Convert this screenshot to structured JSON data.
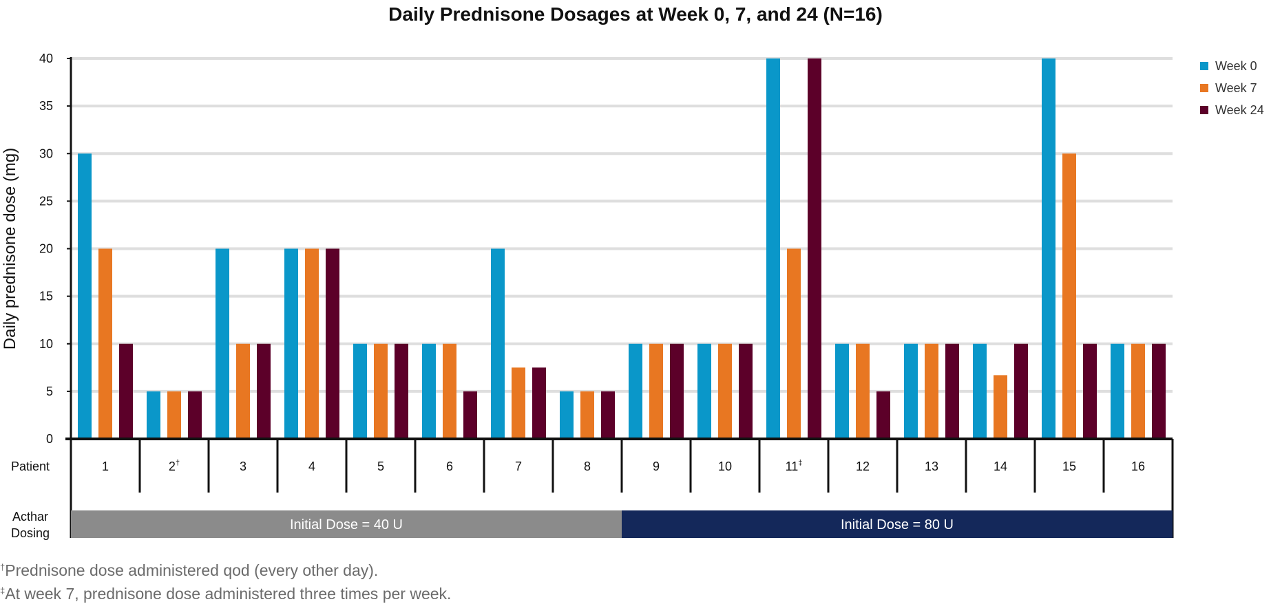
{
  "chart_data": {
    "type": "bar",
    "title": "Daily Prednisone Dosages at Week 0, 7, and 24 (N=16)",
    "ylabel": "Daily prednisone dose (mg)",
    "xlabel": "Patient",
    "ylim": [
      0,
      40
    ],
    "yticks": [
      0,
      5,
      10,
      15,
      20,
      25,
      30,
      35,
      40
    ],
    "grid": true,
    "legend_position": "top-right",
    "categories": [
      "1",
      "2†",
      "3",
      "4",
      "5",
      "6",
      "7",
      "8",
      "9",
      "10",
      "11‡",
      "12",
      "13",
      "14",
      "15",
      "16"
    ],
    "series": [
      {
        "name": "Week 0",
        "color": "#0a97c9",
        "values": [
          30,
          5,
          20,
          20,
          10,
          10,
          20,
          5,
          10,
          10,
          40,
          10,
          10,
          10,
          40,
          10
        ]
      },
      {
        "name": "Week 7",
        "color": "#e87722",
        "values": [
          20,
          5,
          10,
          20,
          10,
          10,
          7.5,
          5,
          10,
          10,
          20,
          10,
          10,
          6.7,
          30,
          10
        ]
      },
      {
        "name": "Week 24",
        "color": "#5c0029",
        "values": [
          10,
          5,
          10,
          20,
          10,
          5,
          7.5,
          5,
          10,
          10,
          40,
          5,
          10,
          10,
          10,
          10
        ]
      }
    ],
    "dosing": {
      "row_label": "Acthar\nDosing",
      "groups": [
        {
          "label": "Initial Dose = 40 U",
          "from": 1,
          "to": 8,
          "color": "#8b8b8b"
        },
        {
          "label": "Initial Dose = 80 U",
          "from": 9,
          "to": 16,
          "color": "#14285a"
        }
      ]
    }
  },
  "footnotes": [
    {
      "mark": "†",
      "text": "Prednisone dose administered qod (every other day)."
    },
    {
      "mark": "‡",
      "text": "At week 7, prednisone dose administered three times per week."
    }
  ]
}
